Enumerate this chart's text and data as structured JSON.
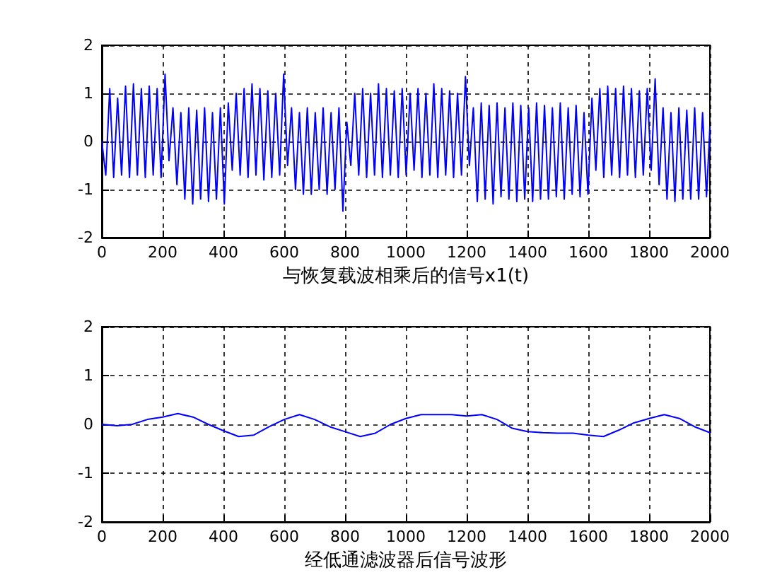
{
  "chart_data": [
    {
      "type": "line",
      "xlabel": "与恢复载波相乘后的信号x1(t)",
      "xlim": [
        0,
        2000
      ],
      "xticks": [
        0,
        200,
        400,
        600,
        800,
        1000,
        1200,
        1400,
        1600,
        1800,
        2000
      ],
      "ylim": [
        -2,
        2
      ],
      "yticks": [
        -2,
        -1,
        0,
        1,
        2
      ],
      "grid": true,
      "marker": "none",
      "line_style": "solid",
      "series": [
        {
          "color": "#0000ff",
          "x": [
            0,
            13,
            26,
            39,
            52,
            65,
            78,
            91,
            104,
            117,
            130,
            143,
            156,
            169,
            182,
            195,
            208,
            221,
            234,
            247,
            260,
            273,
            286,
            299,
            312,
            325,
            338,
            351,
            364,
            377,
            390,
            403,
            416,
            429,
            442,
            455,
            468,
            481,
            494,
            507,
            520,
            533,
            546,
            559,
            572,
            585,
            598,
            611,
            624,
            637,
            650,
            663,
            676,
            689,
            702,
            715,
            728,
            741,
            754,
            767,
            780,
            793,
            806,
            819,
            832,
            845,
            858,
            871,
            884,
            897,
            910,
            923,
            936,
            949,
            962,
            975,
            988,
            1001,
            1014,
            1027,
            1040,
            1053,
            1066,
            1079,
            1092,
            1105,
            1118,
            1131,
            1144,
            1157,
            1170,
            1183,
            1196,
            1209,
            1222,
            1235,
            1248,
            1261,
            1274,
            1287,
            1300,
            1313,
            1326,
            1339,
            1352,
            1365,
            1378,
            1391,
            1404,
            1417,
            1430,
            1443,
            1456,
            1469,
            1482,
            1495,
            1508,
            1521,
            1534,
            1547,
            1560,
            1573,
            1586,
            1599,
            1612,
            1625,
            1638,
            1651,
            1664,
            1677,
            1690,
            1703,
            1716,
            1729,
            1742,
            1755,
            1768,
            1781,
            1794,
            1807,
            1820,
            1833,
            1846,
            1859,
            1872,
            1885,
            1898,
            1911,
            1924,
            1937,
            1950,
            1963,
            1976,
            1989,
            2000
          ],
          "values": [
            0,
            -0.7,
            1.1,
            -0.75,
            0.9,
            -0.7,
            1.15,
            -0.75,
            1.2,
            -0.7,
            1.1,
            -0.75,
            1.15,
            -0.7,
            1.1,
            -0.75,
            1.4,
            -0.4,
            0.7,
            -0.9,
            0.6,
            -1.2,
            0.7,
            -1.3,
            0.65,
            -1.2,
            0.7,
            -1.25,
            0.6,
            -1.2,
            0.7,
            -1.3,
            0.8,
            -0.6,
            1.0,
            -0.7,
            1.1,
            -0.75,
            1.2,
            -0.7,
            1.1,
            -0.8,
            1.05,
            -0.75,
            1.0,
            -0.7,
            1.4,
            -0.5,
            0.7,
            -1.0,
            0.6,
            -1.1,
            0.7,
            -1.1,
            0.6,
            -1.0,
            0.7,
            -1.1,
            0.6,
            -1.0,
            0.7,
            -1.45,
            0.4,
            -0.5,
            1.0,
            -0.7,
            1.1,
            -0.75,
            1.0,
            -0.7,
            1.2,
            -0.75,
            1.1,
            -0.7,
            1.05,
            -0.75,
            1.1,
            -0.7,
            1.0,
            -0.6,
            1.1,
            -0.75,
            1.0,
            -0.7,
            1.2,
            -0.75,
            1.1,
            -0.7,
            1.05,
            -0.75,
            1.0,
            -0.7,
            1.35,
            -0.5,
            0.7,
            -1.25,
            0.8,
            -1.2,
            0.75,
            -1.3,
            0.8,
            -1.15,
            0.7,
            -1.2,
            0.8,
            -1.25,
            0.75,
            -1.2,
            0.7,
            -1.25,
            0.8,
            -1.2,
            0.75,
            -1.2,
            0.7,
            -1.15,
            0.8,
            -1.2,
            0.7,
            -1.1,
            0.75,
            -1.15,
            0.6,
            -1.1,
            0.9,
            -0.6,
            1.1,
            -0.75,
            1.15,
            -0.7,
            1.1,
            -0.75,
            1.15,
            -0.7,
            1.1,
            -0.75,
            1.05,
            -0.7,
            1.1,
            -0.6,
            1.3,
            -0.9,
            0.7,
            -1.2,
            0.6,
            -1.25,
            0.7,
            -1.2,
            0.65,
            -1.2,
            0.7,
            -1.2,
            0.6,
            -1.15,
            0.3
          ]
        }
      ]
    },
    {
      "type": "line",
      "xlabel": "经低通滤波器后信号波形",
      "xlim": [
        0,
        2000
      ],
      "xticks": [
        0,
        200,
        400,
        600,
        800,
        1000,
        1200,
        1400,
        1600,
        1800,
        2000
      ],
      "ylim": [
        -2,
        2
      ],
      "yticks": [
        -2,
        -1,
        0,
        1,
        2
      ],
      "grid": true,
      "marker": "none",
      "line_style": "solid",
      "series": [
        {
          "color": "#0000ff",
          "x": [
            0,
            50,
            100,
            150,
            200,
            250,
            300,
            350,
            400,
            450,
            500,
            550,
            600,
            650,
            700,
            750,
            800,
            850,
            900,
            950,
            1000,
            1050,
            1100,
            1150,
            1200,
            1250,
            1300,
            1350,
            1400,
            1450,
            1500,
            1550,
            1600,
            1650,
            1700,
            1750,
            1800,
            1850,
            1900,
            1950,
            2000
          ],
          "values": [
            0,
            -0.03,
            0,
            0.1,
            0.15,
            0.22,
            0.15,
            0,
            -0.13,
            -0.25,
            -0.22,
            -0.05,
            0.1,
            0.2,
            0.1,
            -0.05,
            -0.15,
            -0.25,
            -0.18,
            0,
            0.12,
            0.2,
            0.2,
            0.2,
            0.17,
            0.2,
            0.1,
            -0.08,
            -0.15,
            -0.17,
            -0.18,
            -0.18,
            -0.22,
            -0.25,
            -0.12,
            0.03,
            0.12,
            0.2,
            0.12,
            -0.05,
            -0.17
          ]
        }
      ]
    }
  ]
}
